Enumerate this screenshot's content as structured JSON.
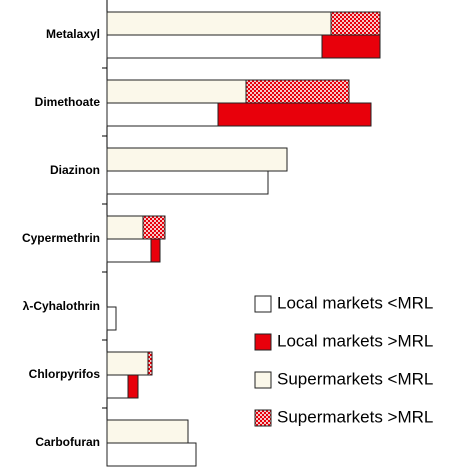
{
  "chart_data": {
    "type": "bar",
    "orientation": "horizontal",
    "stacked": true,
    "categories": [
      "Metalaxyl",
      "Dimethoate",
      "Diazinon",
      "Cypermethrin",
      "λ-Cyhalothrin",
      "Chlorpyrifos",
      "Carbofuran"
    ],
    "xlim": [
      0,
      363
    ],
    "series": [
      {
        "name": "Local markets <MRL",
        "color": "#ffffff",
        "group": "local",
        "values": [
          215,
          111,
          161,
          44,
          9,
          21,
          89
        ]
      },
      {
        "name": "Local markets >MRL",
        "color": "#e8000b",
        "group": "local",
        "values": [
          58,
          153,
          0,
          9,
          0,
          10,
          0
        ]
      },
      {
        "name": "Supermarkets <MRL",
        "color": "#fbf8ea",
        "group": "super",
        "values": [
          224,
          139,
          180,
          36,
          0,
          41,
          81
        ]
      },
      {
        "name": "Supermarkets >MRL",
        "color": "#e8000b",
        "pattern": "checker",
        "group": "super",
        "values": [
          49,
          103,
          0,
          22,
          0,
          4,
          0
        ]
      }
    ],
    "legend": "lower right"
  }
}
